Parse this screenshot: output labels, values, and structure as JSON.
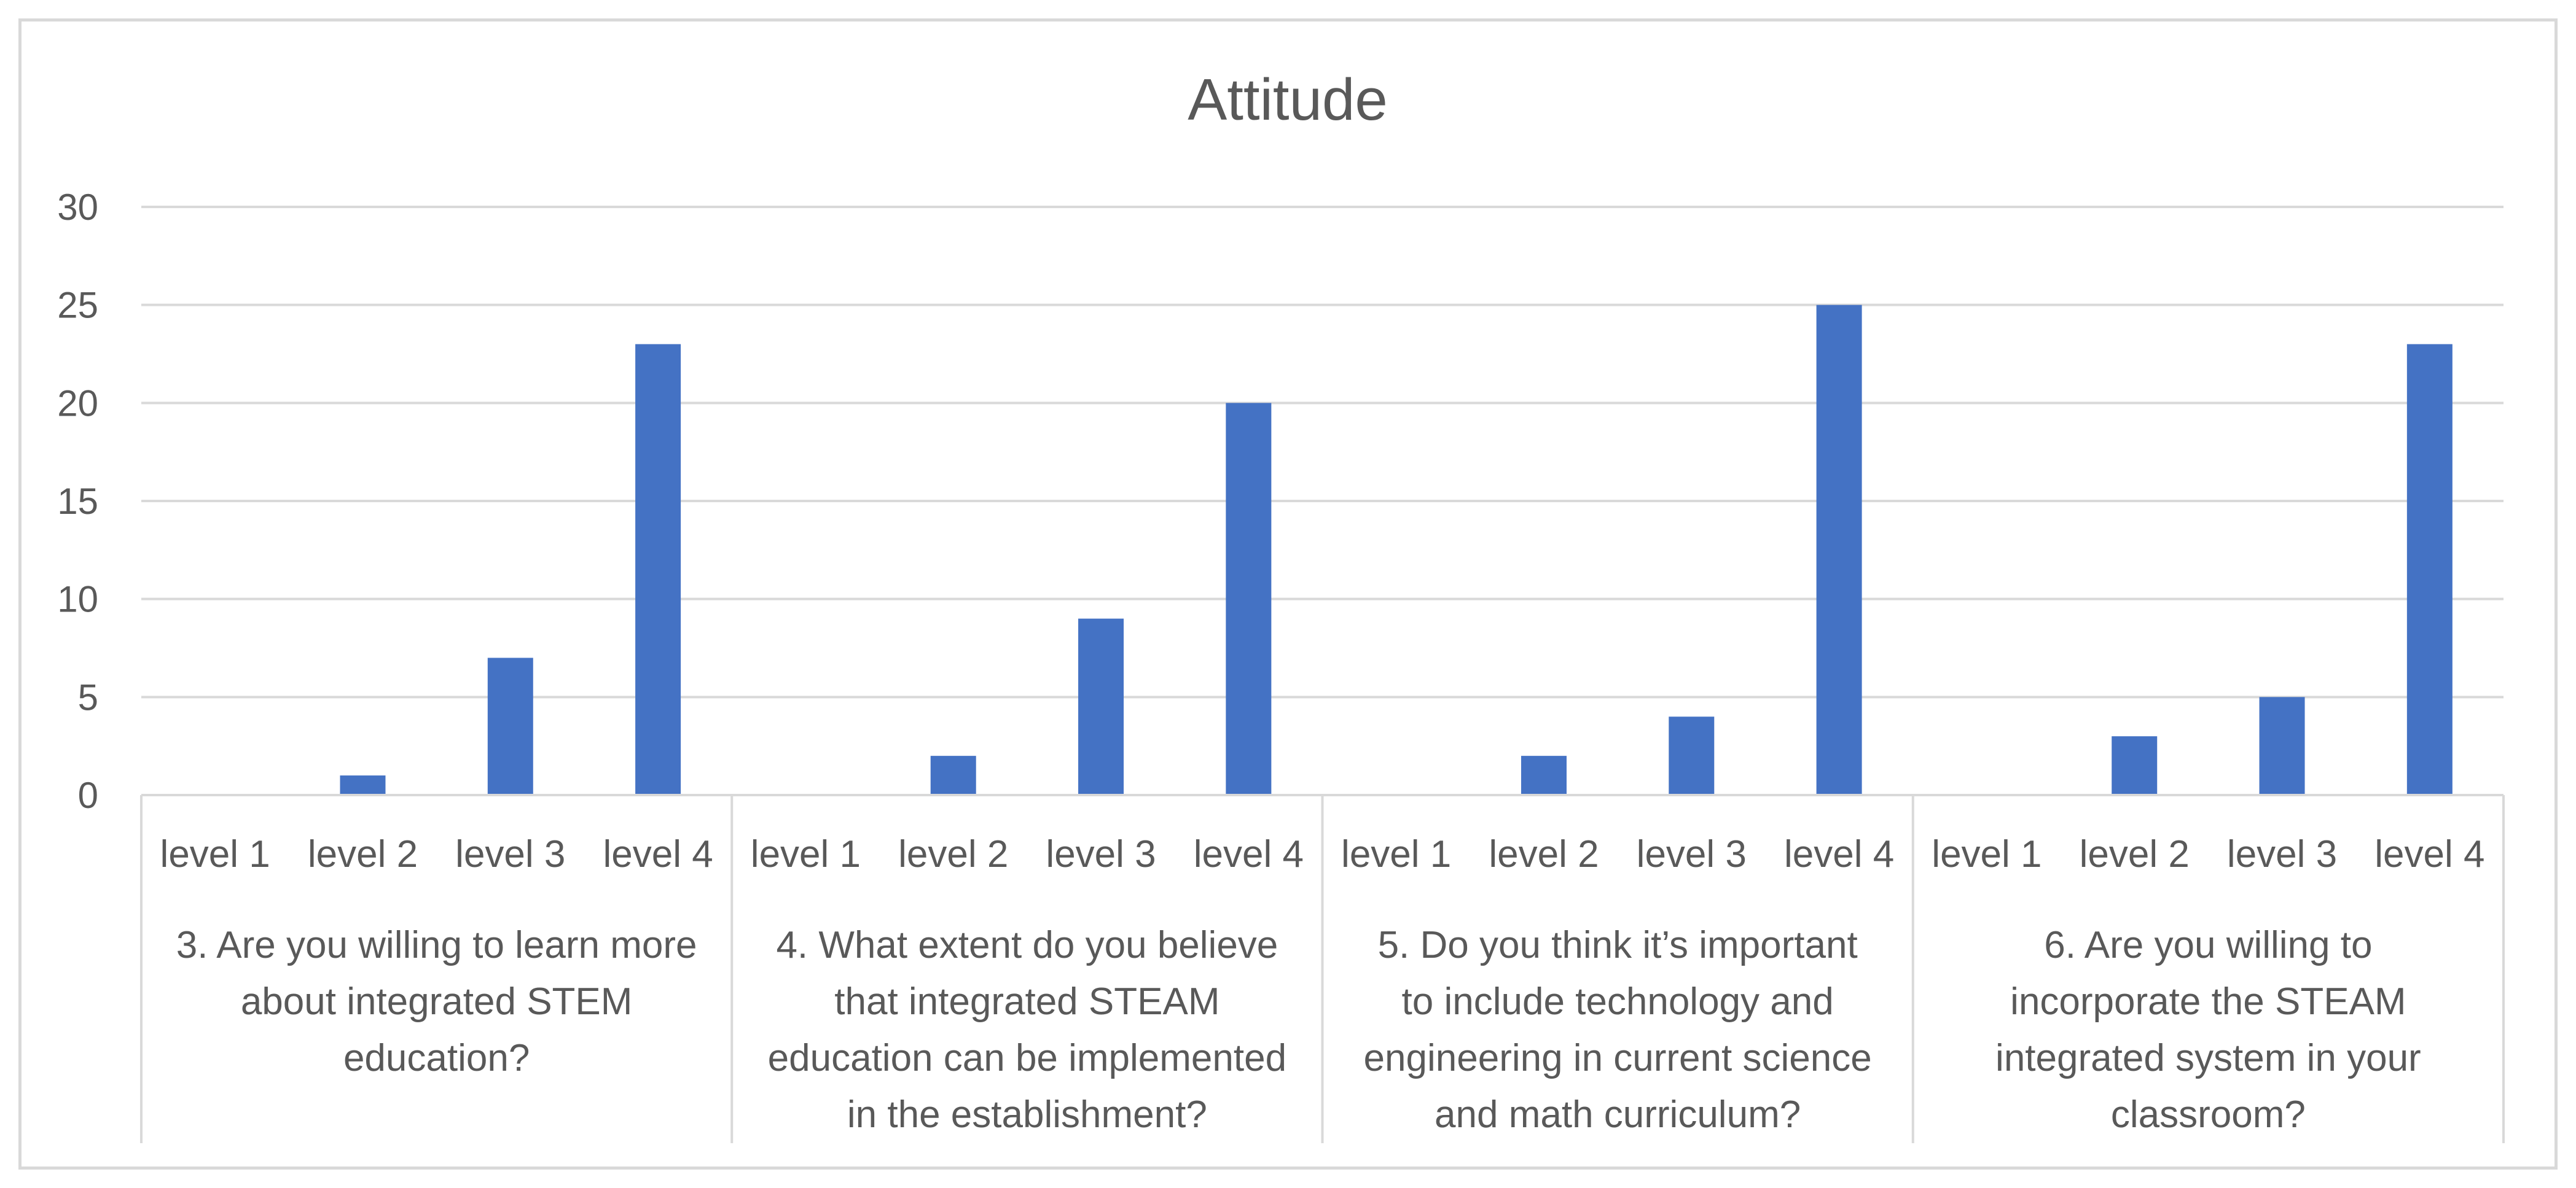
{
  "chart_data": {
    "type": "bar",
    "title": "Attitude",
    "xlabel": "",
    "ylabel": "",
    "ylim": [
      0,
      30
    ],
    "yticks": [
      0,
      5,
      10,
      15,
      20,
      25,
      30
    ],
    "grid": true,
    "legend": "none",
    "bar_color": "#4472c4",
    "groups": [
      {
        "label_lines": [
          "3. Are you willing to learn more",
          "about integrated STEM",
          "education?"
        ],
        "categories": [
          "level 1",
          "level 2",
          "level 3",
          "level 4"
        ],
        "values": [
          0,
          1,
          7,
          23
        ]
      },
      {
        "label_lines": [
          "4. What extent do you believe",
          "that integrated STEAM",
          "education can be implemented",
          "in the establishment?"
        ],
        "categories": [
          "level 1",
          "level 2",
          "level 3",
          "level 4"
        ],
        "values": [
          0,
          2,
          9,
          20
        ]
      },
      {
        "label_lines": [
          "5. Do you think it’s important",
          "to include technology and",
          "engineering in current science",
          "and math curriculum?"
        ],
        "categories": [
          "level 1",
          "level 2",
          "level 3",
          "level 4"
        ],
        "values": [
          0,
          2,
          4,
          25
        ]
      },
      {
        "label_lines": [
          "6. Are you willing to",
          "incorporate the STEAM",
          "integrated system in your",
          "classroom?"
        ],
        "categories": [
          "level 1",
          "level 2",
          "level 3",
          "level 4"
        ],
        "values": [
          0,
          3,
          5,
          23
        ]
      }
    ]
  }
}
